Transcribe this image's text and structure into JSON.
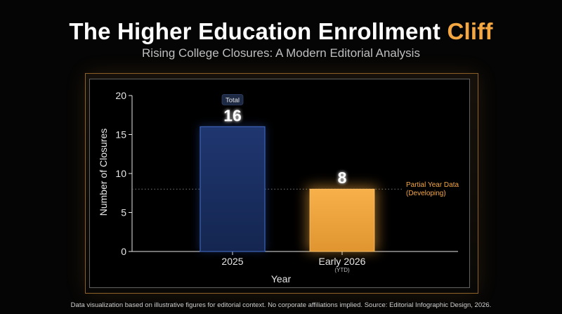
{
  "header": {
    "title_main": "The Higher Education Enrollment",
    "title_accent": "Cliff",
    "subtitle": "Rising College Closures: A Modern Editorial Analysis"
  },
  "colors": {
    "accent": "#f5a742",
    "bar_2025": "#1b2f5e",
    "bar_2025_border": "#3d63b8",
    "bar_2026": "#f0a43c"
  },
  "chart_data": {
    "type": "bar",
    "categories": [
      "2025",
      "Early 2026"
    ],
    "category_sublabels": [
      "",
      "(YTD)"
    ],
    "values": [
      16,
      8
    ],
    "data_labels": [
      "16",
      "8"
    ],
    "badge_label": "Total",
    "xlabel": "Year",
    "ylabel": "Number of Closures",
    "ylim": [
      0,
      20
    ],
    "yticks": [
      0,
      5,
      10,
      15,
      20
    ],
    "reference_line": {
      "value": 8,
      "label_line1": "Partial Year Data",
      "label_line2": "(Developing)"
    },
    "grid": false
  },
  "footnote": "Data visualization based on illustrative figures for editorial context. No corporate affiliations implied. Source: Editorial Infographic Design, 2026."
}
